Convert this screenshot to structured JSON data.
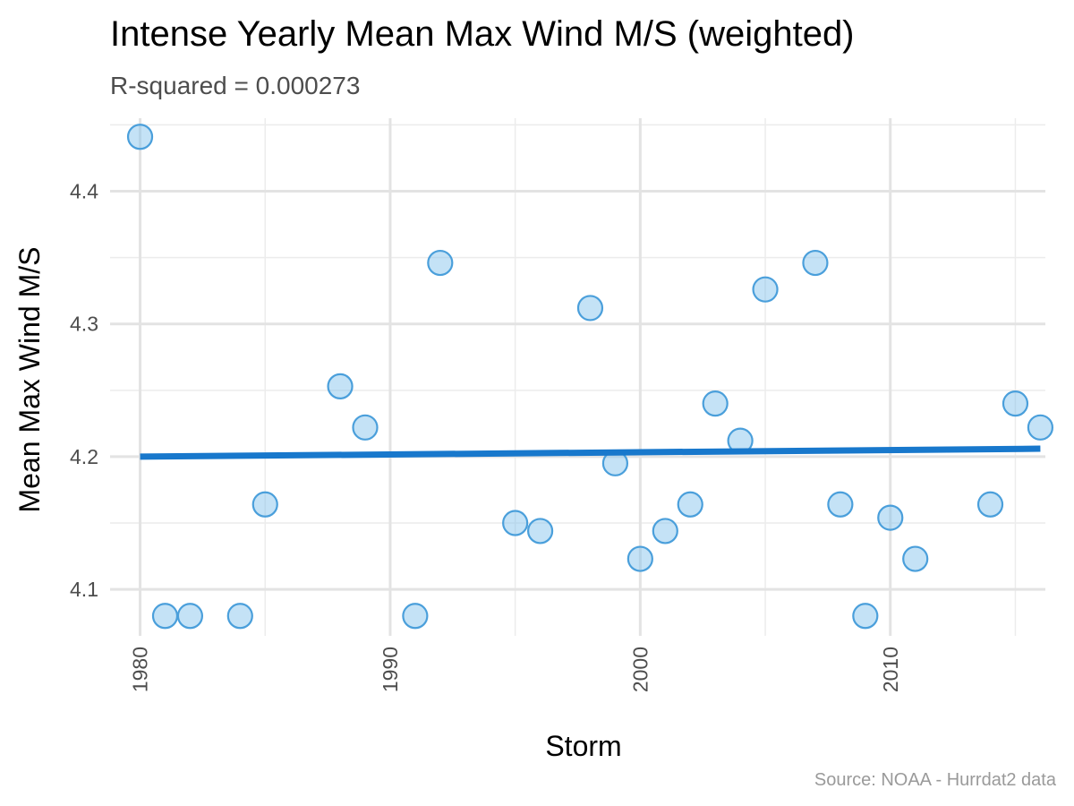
{
  "chart_data": {
    "type": "scatter",
    "title": "Intense Yearly Mean Max Wind M/S (weighted)",
    "subtitle": "R-squared =  0.000273",
    "caption": "Source: NOAA - Hurrdat2 data",
    "xlabel": "Storm",
    "ylabel": "Mean Max Wind M/S",
    "xlim": [
      1978.8,
      2016.2
    ],
    "ylim": [
      4.065,
      4.455
    ],
    "x_ticks": [
      1980,
      1990,
      2000,
      2010
    ],
    "x_minor_ticks": [
      1985,
      1995,
      2005,
      2015
    ],
    "y_ticks": [
      4.1,
      4.2,
      4.3,
      4.4
    ],
    "y_minor_ticks": [
      4.15,
      4.25,
      4.35,
      4.45
    ],
    "grid": true,
    "series": [
      {
        "x": [
          1980,
          1981,
          1982,
          1984,
          1985,
          1988,
          1989,
          1991,
          1992,
          1995,
          1996,
          1998,
          1999,
          2000,
          2001,
          2002,
          2003,
          2004,
          2005,
          2007,
          2008,
          2009,
          2010,
          2011,
          2014,
          2015,
          2016
        ],
        "y": [
          4.441,
          4.08,
          4.08,
          4.08,
          4.164,
          4.253,
          4.222,
          4.08,
          4.346,
          4.15,
          4.144,
          4.312,
          4.195,
          4.123,
          4.144,
          4.164,
          4.24,
          4.212,
          4.326,
          4.346,
          4.164,
          4.08,
          4.154,
          4.123,
          4.164,
          4.24,
          4.222
        ],
        "point_color": "#7cbfea",
        "point_stroke": "#4a9fdb"
      }
    ],
    "trend_line": {
      "x": [
        1980,
        2016
      ],
      "y": [
        4.2,
        4.206
      ],
      "color": "#1878cc"
    }
  }
}
